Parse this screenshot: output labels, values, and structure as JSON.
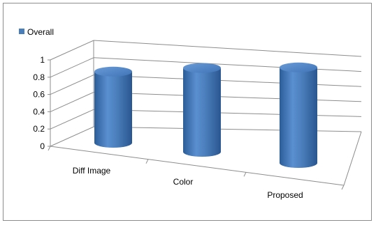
{
  "chart_data": {
    "type": "bar",
    "style": "3d-cylinder",
    "title": "",
    "xlabel": "",
    "ylabel": "",
    "categories": [
      "Diff Image",
      "Color",
      "Proposed"
    ],
    "series": [
      {
        "name": "Overall",
        "values": [
          0.73,
          0.86,
          0.98
        ],
        "color": "#4a7ebb"
      }
    ],
    "ylim": [
      0,
      1
    ],
    "yticks": [
      "0",
      "0.2",
      "0.4",
      "0.6",
      "0.8",
      "1"
    ],
    "grid": true,
    "legend": "top-left"
  }
}
